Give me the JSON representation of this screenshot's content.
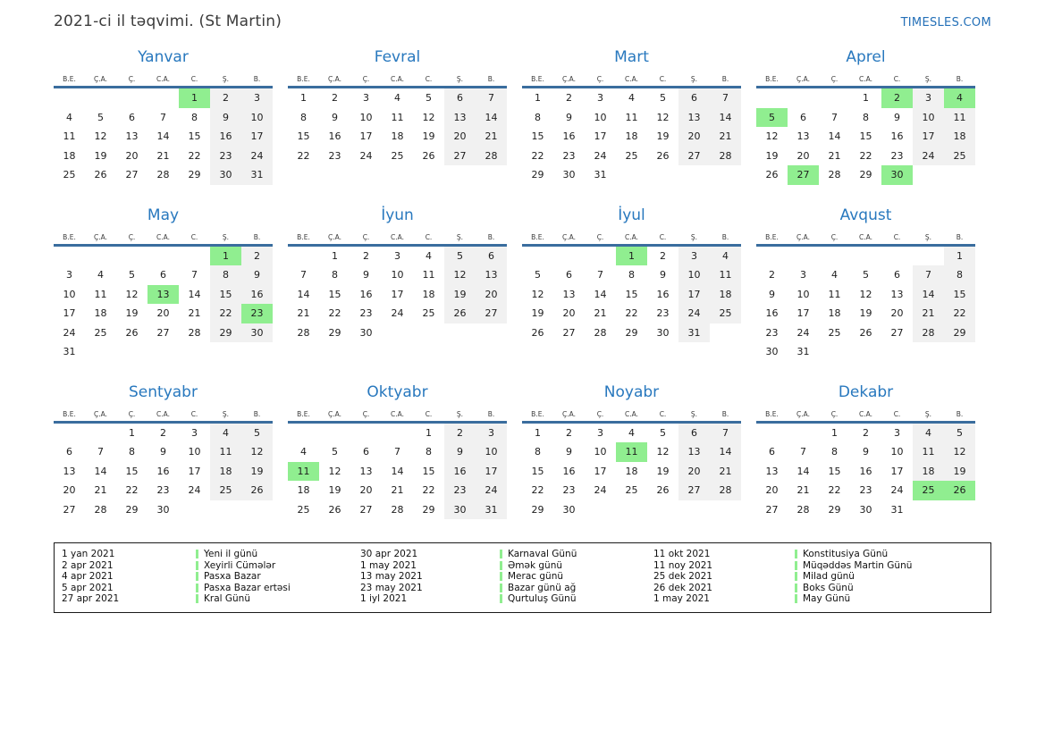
{
  "header": {
    "title": "2021-ci il təqvimi. (St Martin)",
    "site": "TIMESLES.COM"
  },
  "colors": {
    "accent_blue": "#2878be",
    "rule_blue": "#3a6d9e",
    "holiday_green": "#90ee90",
    "weekend_gray": "#f1f1f1",
    "link_blue": "#2470b8"
  },
  "weekday_headers": [
    "B.E.",
    "Ç.A.",
    "Ç.",
    "C.A.",
    "C.",
    "Ş.",
    "B."
  ],
  "weekend_column_indexes": [
    5,
    6
  ],
  "months": [
    {
      "key": "yanvar",
      "name": "Yanvar",
      "highlights": [
        1
      ],
      "weeks": [
        [
          "",
          "",
          "",
          "",
          "1",
          "2",
          "3"
        ],
        [
          "4",
          "5",
          "6",
          "7",
          "8",
          "9",
          "10"
        ],
        [
          "11",
          "12",
          "13",
          "14",
          "15",
          "16",
          "17"
        ],
        [
          "18",
          "19",
          "20",
          "21",
          "22",
          "23",
          "24"
        ],
        [
          "25",
          "26",
          "27",
          "28",
          "29",
          "30",
          "31"
        ]
      ]
    },
    {
      "key": "fevral",
      "name": "Fevral",
      "highlights": [],
      "weeks": [
        [
          "1",
          "2",
          "3",
          "4",
          "5",
          "6",
          "7"
        ],
        [
          "8",
          "9",
          "10",
          "11",
          "12",
          "13",
          "14"
        ],
        [
          "15",
          "16",
          "17",
          "18",
          "19",
          "20",
          "21"
        ],
        [
          "22",
          "23",
          "24",
          "25",
          "26",
          "27",
          "28"
        ]
      ]
    },
    {
      "key": "mart",
      "name": "Mart",
      "highlights": [],
      "weeks": [
        [
          "1",
          "2",
          "3",
          "4",
          "5",
          "6",
          "7"
        ],
        [
          "8",
          "9",
          "10",
          "11",
          "12",
          "13",
          "14"
        ],
        [
          "15",
          "16",
          "17",
          "18",
          "19",
          "20",
          "21"
        ],
        [
          "22",
          "23",
          "24",
          "25",
          "26",
          "27",
          "28"
        ],
        [
          "29",
          "30",
          "31",
          "",
          "",
          "",
          ""
        ]
      ]
    },
    {
      "key": "aprel",
      "name": "Aprel",
      "highlights": [
        2,
        4,
        5,
        27,
        30
      ],
      "weeks": [
        [
          "",
          "",
          "",
          "1",
          "2",
          "3",
          "4"
        ],
        [
          "5",
          "6",
          "7",
          "8",
          "9",
          "10",
          "11"
        ],
        [
          "12",
          "13",
          "14",
          "15",
          "16",
          "17",
          "18"
        ],
        [
          "19",
          "20",
          "21",
          "22",
          "23",
          "24",
          "25"
        ],
        [
          "26",
          "27",
          "28",
          "29",
          "30",
          "",
          ""
        ]
      ]
    },
    {
      "key": "may",
      "name": "May",
      "highlights": [
        1,
        13,
        23
      ],
      "weeks": [
        [
          "",
          "",
          "",
          "",
          "",
          "1",
          "2"
        ],
        [
          "3",
          "4",
          "5",
          "6",
          "7",
          "8",
          "9"
        ],
        [
          "10",
          "11",
          "12",
          "13",
          "14",
          "15",
          "16"
        ],
        [
          "17",
          "18",
          "19",
          "20",
          "21",
          "22",
          "23"
        ],
        [
          "24",
          "25",
          "26",
          "27",
          "28",
          "29",
          "30"
        ],
        [
          "31",
          "",
          "",
          "",
          "",
          "",
          ""
        ]
      ]
    },
    {
      "key": "iyun",
      "name": "İyun",
      "highlights": [],
      "weeks": [
        [
          "",
          "1",
          "2",
          "3",
          "4",
          "5",
          "6"
        ],
        [
          "7",
          "8",
          "9",
          "10",
          "11",
          "12",
          "13"
        ],
        [
          "14",
          "15",
          "16",
          "17",
          "18",
          "19",
          "20"
        ],
        [
          "21",
          "22",
          "23",
          "24",
          "25",
          "26",
          "27"
        ],
        [
          "28",
          "29",
          "30",
          "",
          "",
          "",
          ""
        ]
      ]
    },
    {
      "key": "iyul",
      "name": "İyul",
      "highlights": [
        1
      ],
      "weeks": [
        [
          "",
          "",
          "",
          "1",
          "2",
          "3",
          "4"
        ],
        [
          "5",
          "6",
          "7",
          "8",
          "9",
          "10",
          "11"
        ],
        [
          "12",
          "13",
          "14",
          "15",
          "16",
          "17",
          "18"
        ],
        [
          "19",
          "20",
          "21",
          "22",
          "23",
          "24",
          "25"
        ],
        [
          "26",
          "27",
          "28",
          "29",
          "30",
          "31",
          ""
        ]
      ]
    },
    {
      "key": "avqust",
      "name": "Avqust",
      "highlights": [],
      "weeks": [
        [
          "",
          "",
          "",
          "",
          "",
          "",
          "1"
        ],
        [
          "2",
          "3",
          "4",
          "5",
          "6",
          "7",
          "8"
        ],
        [
          "9",
          "10",
          "11",
          "12",
          "13",
          "14",
          "15"
        ],
        [
          "16",
          "17",
          "18",
          "19",
          "20",
          "21",
          "22"
        ],
        [
          "23",
          "24",
          "25",
          "26",
          "27",
          "28",
          "29"
        ],
        [
          "30",
          "31",
          "",
          "",
          "",
          "",
          ""
        ]
      ]
    },
    {
      "key": "sentyabr",
      "name": "Sentyabr",
      "highlights": [],
      "weeks": [
        [
          "",
          "",
          "1",
          "2",
          "3",
          "4",
          "5"
        ],
        [
          "6",
          "7",
          "8",
          "9",
          "10",
          "11",
          "12"
        ],
        [
          "13",
          "14",
          "15",
          "16",
          "17",
          "18",
          "19"
        ],
        [
          "20",
          "21",
          "22",
          "23",
          "24",
          "25",
          "26"
        ],
        [
          "27",
          "28",
          "29",
          "30",
          "",
          "",
          ""
        ]
      ]
    },
    {
      "key": "oktyabr",
      "name": "Oktyabr",
      "highlights": [
        11
      ],
      "weeks": [
        [
          "",
          "",
          "",
          "",
          "1",
          "2",
          "3"
        ],
        [
          "4",
          "5",
          "6",
          "7",
          "8",
          "9",
          "10"
        ],
        [
          "11",
          "12",
          "13",
          "14",
          "15",
          "16",
          "17"
        ],
        [
          "18",
          "19",
          "20",
          "21",
          "22",
          "23",
          "24"
        ],
        [
          "25",
          "26",
          "27",
          "28",
          "29",
          "30",
          "31"
        ]
      ]
    },
    {
      "key": "noyabr",
      "name": "Noyabr",
      "highlights": [
        11
      ],
      "weeks": [
        [
          "1",
          "2",
          "3",
          "4",
          "5",
          "6",
          "7"
        ],
        [
          "8",
          "9",
          "10",
          "11",
          "12",
          "13",
          "14"
        ],
        [
          "15",
          "16",
          "17",
          "18",
          "19",
          "20",
          "21"
        ],
        [
          "22",
          "23",
          "24",
          "25",
          "26",
          "27",
          "28"
        ],
        [
          "29",
          "30",
          "",
          "",
          "",
          "",
          ""
        ]
      ]
    },
    {
      "key": "dekabr",
      "name": "Dekabr",
      "highlights": [
        25,
        26
      ],
      "weeks": [
        [
          "",
          "",
          "1",
          "2",
          "3",
          "4",
          "5"
        ],
        [
          "6",
          "7",
          "8",
          "9",
          "10",
          "11",
          "12"
        ],
        [
          "13",
          "14",
          "15",
          "16",
          "17",
          "18",
          "19"
        ],
        [
          "20",
          "21",
          "22",
          "23",
          "24",
          "25",
          "26"
        ],
        [
          "27",
          "28",
          "29",
          "30",
          "31",
          "",
          ""
        ]
      ]
    }
  ],
  "legend": {
    "groups": [
      {
        "entries": [
          {
            "date": "1 yan 2021",
            "label": "Yeni il günü"
          },
          {
            "date": "2 apr 2021",
            "label": "Xeyirli Cümələr"
          },
          {
            "date": "4 apr 2021",
            "label": "Pasxa Bazar"
          },
          {
            "date": "5 apr 2021",
            "label": "Pasxa Bazar ertəsi"
          },
          {
            "date": "27 apr 2021",
            "label": "Kral Günü"
          }
        ]
      },
      {
        "entries": [
          {
            "date": "30 apr 2021",
            "label": "Karnaval Günü"
          },
          {
            "date": "1 may 2021",
            "label": "Əmək günü"
          },
          {
            "date": "13 may 2021",
            "label": "Merac günü"
          },
          {
            "date": "23 may 2021",
            "label": "Bazar günü ağ"
          },
          {
            "date": "1 iyl 2021",
            "label": "Qurtuluş Günü"
          }
        ]
      },
      {
        "entries": [
          {
            "date": "11 okt 2021",
            "label": "Konstitusiya Günü"
          },
          {
            "date": "11 noy 2021",
            "label": "Müqəddəs Martin Günü"
          },
          {
            "date": "25 dek 2021",
            "label": "Milad günü"
          },
          {
            "date": "26 dek 2021",
            "label": "Boks Günü"
          },
          {
            "date": "1 may 2021",
            "label": "May Günü"
          }
        ]
      }
    ]
  }
}
